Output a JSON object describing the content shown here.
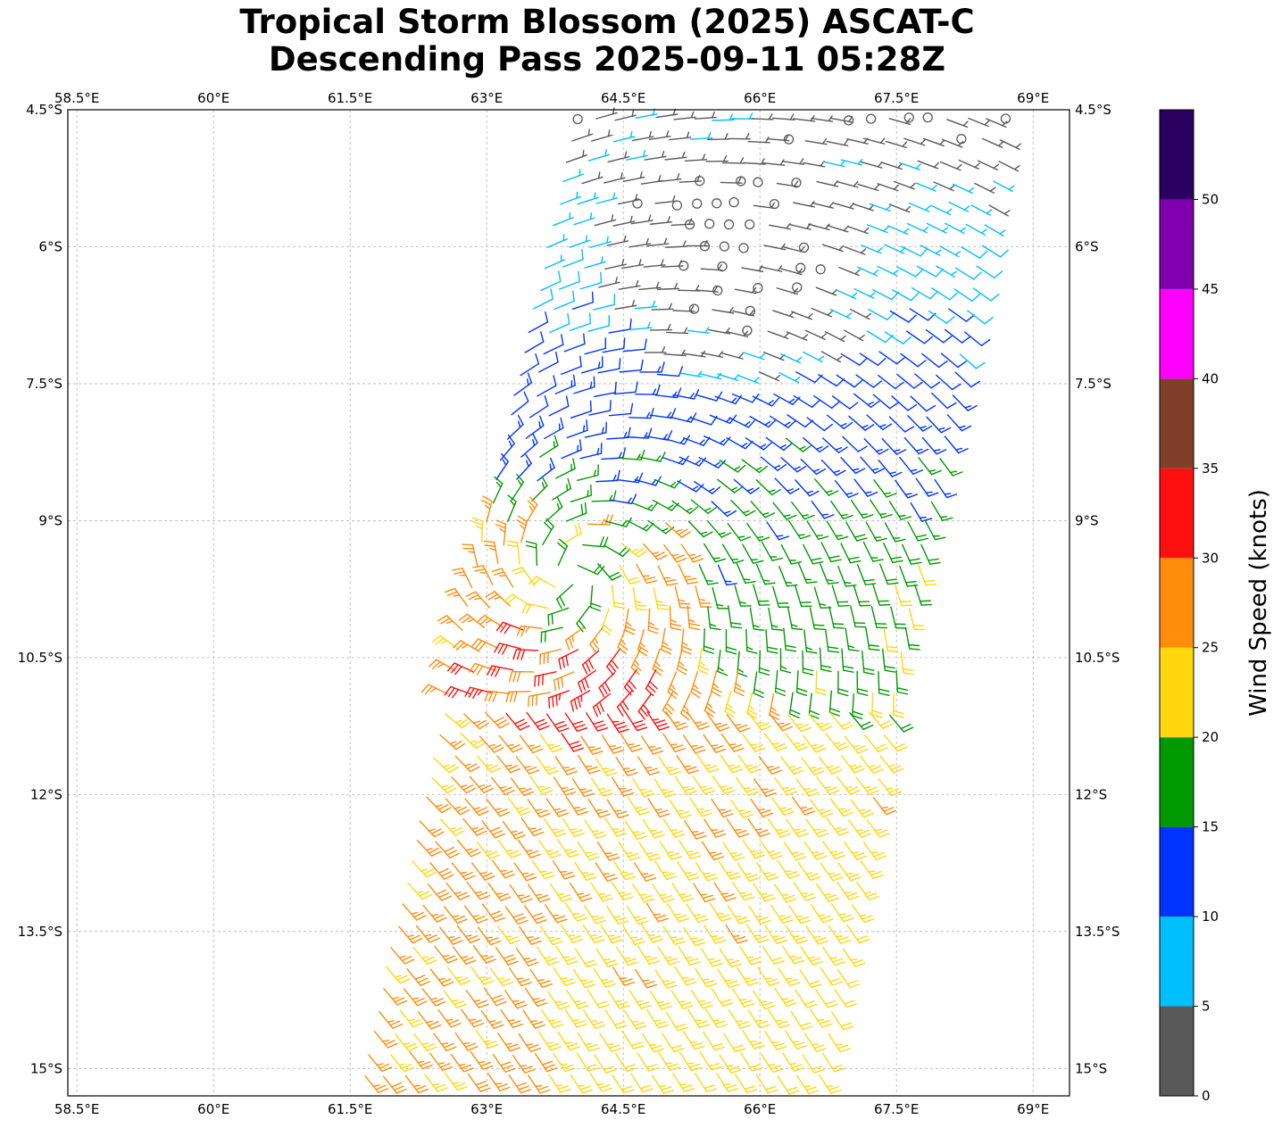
{
  "title": {
    "line1": "Tropical Storm Blossom (2025) ASCAT-C",
    "line2": "Descending Pass 2025-09-11 05:28Z"
  },
  "map": {
    "lon_range": [
      58.4,
      69.4
    ],
    "lat_range": [
      -15.3,
      -4.5
    ],
    "lon_ticks": [
      58.5,
      60,
      61.5,
      63,
      64.5,
      66,
      67.5,
      69
    ],
    "lon_tick_labels": [
      "58.5°E",
      "60°E",
      "61.5°E",
      "63°E",
      "64.5°E",
      "66°E",
      "67.5°E",
      "69°E"
    ],
    "lat_ticks": [
      -4.5,
      -6,
      -7.5,
      -9,
      -10.5,
      -12,
      -13.5,
      -15
    ],
    "lat_tick_labels": [
      "4.5°S",
      "6°S",
      "7.5°S",
      "9°S",
      "10.5°S",
      "12°S",
      "13.5°S",
      "15°S"
    ],
    "gridlines": true,
    "swath_corners_lonlat": [
      [
        64.0,
        -4.6
      ],
      [
        68.7,
        -4.6
      ],
      [
        66.6,
        -15.3
      ],
      [
        61.6,
        -15.3
      ]
    ],
    "storm_center_lonlat": [
      63.9,
      -9.6
    ]
  },
  "colorbar": {
    "label": "Wind Speed (knots)",
    "bounds": [
      0,
      5,
      10,
      15,
      20,
      25,
      30,
      35,
      40,
      45,
      50,
      55
    ],
    "tick_values": [
      0,
      5,
      10,
      15,
      20,
      25,
      30,
      35,
      40,
      45,
      50
    ],
    "tick_labels": [
      "0",
      "5",
      "10",
      "15",
      "20",
      "25",
      "30",
      "35",
      "40",
      "45",
      "50"
    ],
    "colors": [
      "#595959",
      "#00bfff",
      "#0033ff",
      "#009900",
      "#ffd70f",
      "#ff8c0a",
      "#ff1010",
      "#7f3f28",
      "#ff00ff",
      "#8000b0",
      "#2a0060"
    ]
  }
}
